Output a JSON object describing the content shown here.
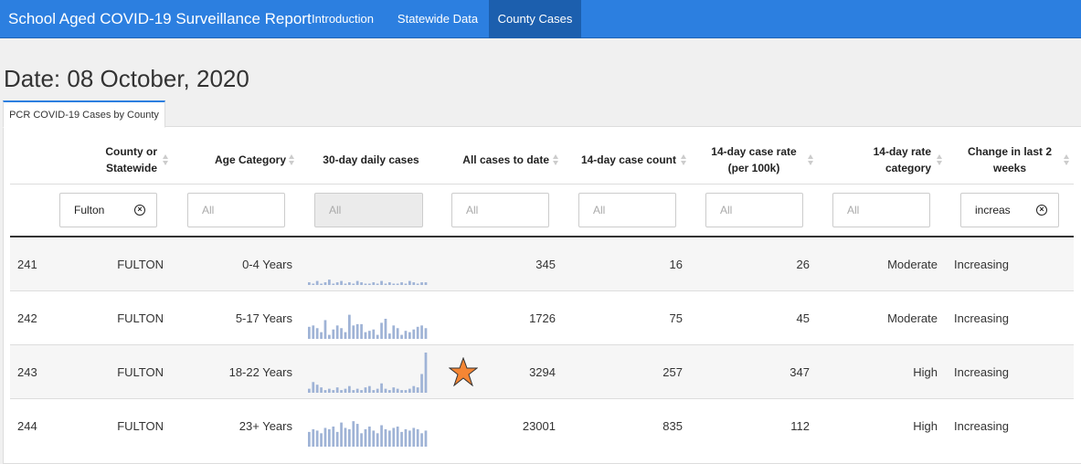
{
  "header": {
    "title": "School Aged COVID-19 Surveillance Report",
    "nav": [
      {
        "label": "Introduction",
        "active": false
      },
      {
        "label": "Statewide Data",
        "active": false
      },
      {
        "label": "County Cases",
        "active": true
      }
    ]
  },
  "page": {
    "date": "Date: 08 October, 2020",
    "tab": "PCR COVID-19 Cases by County"
  },
  "table": {
    "columns": [
      {
        "key": "county",
        "line1": "County or",
        "line2": "Statewide"
      },
      {
        "key": "age",
        "line1": "Age Category",
        "line2": ""
      },
      {
        "key": "daily",
        "line1": "30-day daily cases",
        "line2": ""
      },
      {
        "key": "all",
        "line1": "All cases to date",
        "line2": ""
      },
      {
        "key": "count14",
        "line1": "14-day case count",
        "line2": ""
      },
      {
        "key": "rate14",
        "line1": "14-day case rate",
        "line2": "(per 100k)"
      },
      {
        "key": "ratecat",
        "line1": "14-day rate",
        "line2": "category"
      },
      {
        "key": "change",
        "line1": "Change in last 2",
        "line2": "weeks"
      }
    ],
    "filters": {
      "county": "Fulton",
      "age": "All",
      "daily": "All",
      "all": "All",
      "count14": "All",
      "rate14": "All",
      "ratecat": "All",
      "change": "increas"
    },
    "rows": [
      {
        "id": "241",
        "county": "FULTON",
        "age": "0-4 Years",
        "all": "345",
        "count14": "16",
        "rate14": "26",
        "ratecat": "Moderate",
        "change": "Increasing",
        "daily": [
          2,
          1,
          3,
          1,
          2,
          4,
          1,
          2,
          3,
          1,
          2,
          1,
          3,
          2,
          1,
          1,
          2,
          1,
          3,
          1,
          2,
          1,
          1,
          2,
          1,
          3,
          2,
          1,
          2,
          2
        ]
      },
      {
        "id": "242",
        "county": "FULTON",
        "age": "5-17 Years",
        "all": "1726",
        "count14": "75",
        "rate14": "45",
        "ratecat": "Moderate",
        "change": "Increasing",
        "daily": [
          9,
          10,
          8,
          5,
          14,
          3,
          7,
          10,
          8,
          5,
          18,
          10,
          11,
          11,
          5,
          6,
          7,
          3,
          12,
          15,
          4,
          10,
          8,
          3,
          6,
          5,
          7,
          9,
          10,
          8
        ]
      },
      {
        "id": "243",
        "county": "FULTON",
        "age": "18-22 Years",
        "all": "3294",
        "count14": "257",
        "rate14": "347",
        "ratecat": "High",
        "change": "Increasing",
        "daily": [
          3,
          8,
          6,
          4,
          2,
          3,
          2,
          4,
          2,
          3,
          5,
          2,
          3,
          2,
          4,
          5,
          2,
          3,
          7,
          3,
          2,
          4,
          3,
          2,
          2,
          3,
          5,
          4,
          14,
          30
        ]
      },
      {
        "id": "244",
        "county": "FULTON",
        "age": "23+ Years",
        "all": "23001",
        "count14": "835",
        "rate14": "112",
        "ratecat": "High",
        "change": "Increasing",
        "daily": [
          11,
          13,
          12,
          10,
          14,
          13,
          15,
          11,
          18,
          14,
          13,
          19,
          17,
          10,
          13,
          15,
          12,
          10,
          16,
          13,
          12,
          14,
          15,
          11,
          13,
          12,
          14,
          13,
          10,
          12
        ]
      }
    ]
  },
  "colors": {
    "navbar": "#2c7fe0",
    "spark_bar": "#9fb3d6",
    "star_fill": "#f58634",
    "star_stroke": "#333333"
  },
  "icons": {
    "clear": "clear-circle-x-icon",
    "sort": "sort-arrows-icon",
    "marker": "star-icon"
  }
}
